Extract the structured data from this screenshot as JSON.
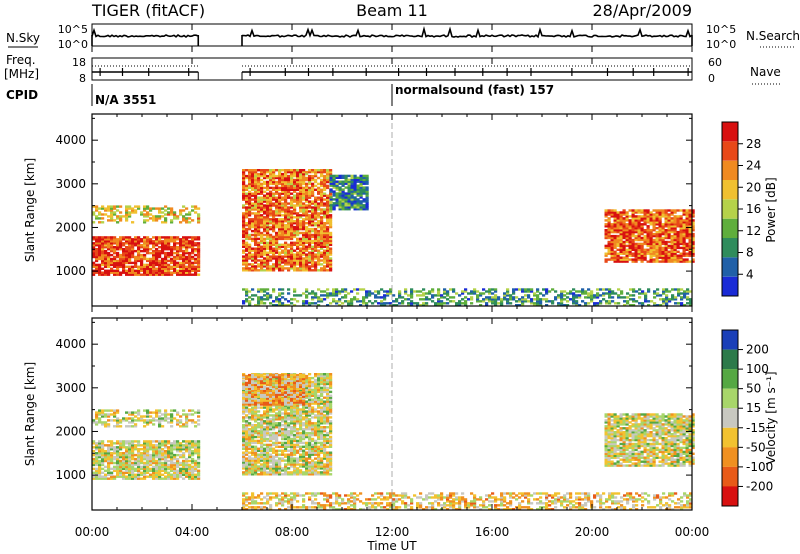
{
  "header": {
    "radar": "TIGER (fitACF)",
    "beam": "Beam 11",
    "date": "28/Apr/2009"
  },
  "noise_panel": {
    "left_label": "N.Sky",
    "right_label": "N.Search",
    "ticks_left": [
      "10^5",
      "10^0"
    ],
    "ticks_right": [
      "10^5",
      "10^0"
    ]
  },
  "freq_panel": {
    "left_label_1": "Freq.",
    "left_label_2": "[MHz]",
    "left_ticks": [
      "18",
      "8"
    ],
    "right_label": "Nave",
    "right_ticks": [
      "60",
      "0"
    ]
  },
  "cpid_panel": {
    "label": "CPID",
    "entries": [
      "N/A 3551",
      "normalsound (fast) 157"
    ]
  },
  "time_axis": {
    "label": "Time UT",
    "ticks": [
      "00:00",
      "04:00",
      "08:00",
      "12:00",
      "16:00",
      "20:00",
      "00:00"
    ]
  },
  "power_panel": {
    "ylabel": "Slant Range [km]",
    "yticks": [
      "1000",
      "2000",
      "3000",
      "4000"
    ],
    "colorbar_label": "Power [dB]",
    "colorbar_ticks": [
      "4",
      "8",
      "12",
      "16",
      "20",
      "24",
      "28"
    ],
    "colors": [
      "#1a2bd6",
      "#2060a8",
      "#2f8c5c",
      "#5fae3c",
      "#b5d24a",
      "#f0c030",
      "#f08a20",
      "#e84818",
      "#d81010"
    ]
  },
  "velocity_panel": {
    "ylabel": "Slant Range [km]",
    "yticks": [
      "1000",
      "2000",
      "3000",
      "4000"
    ],
    "colorbar_label": "Velocity [m s⁻¹]",
    "colorbar_ticks": [
      "200",
      "100",
      "50",
      "15",
      "-15",
      "-50",
      "-100",
      "-200"
    ],
    "colors": [
      "#1a3fb8",
      "#2c7a4a",
      "#55a843",
      "#a8d66a",
      "#c8c8c0",
      "#f2c230",
      "#f09020",
      "#e85a18",
      "#d81010"
    ]
  },
  "chart_data": [
    {
      "type": "heatmap",
      "title": "Power [dB]",
      "xlabel": "Time UT",
      "ylabel": "Slant Range [km]",
      "xlim": [
        "00:00",
        "24:00"
      ],
      "ylim": [
        200,
        4600
      ],
      "zlim": [
        0,
        32
      ],
      "data_gap": [
        "04:15",
        "06:00"
      ],
      "regions": [
        {
          "t": [
            "00:00",
            "04:15"
          ],
          "range_km": [
            900,
            1800
          ],
          "power_db": 28
        },
        {
          "t": [
            "00:00",
            "04:15"
          ],
          "range_km": [
            2100,
            2500
          ],
          "power_db": 18
        },
        {
          "t": [
            "06:00",
            "09:30"
          ],
          "range_km": [
            1000,
            3300
          ],
          "power_db": 24
        },
        {
          "t": [
            "09:30",
            "11:00"
          ],
          "range_km": [
            2400,
            3200
          ],
          "power_db": 8
        },
        {
          "t": [
            "20:30",
            "24:00"
          ],
          "range_km": [
            1200,
            2400
          ],
          "power_db": 26
        },
        {
          "t": [
            "06:00",
            "24:00"
          ],
          "range_km": [
            200,
            600
          ],
          "power_db": 10
        }
      ]
    },
    {
      "type": "heatmap",
      "title": "Velocity [m s⁻¹]",
      "xlabel": "Time UT",
      "ylabel": "Slant Range [km]",
      "xlim": [
        "00:00",
        "24:00"
      ],
      "ylim": [
        200,
        4600
      ],
      "zlim": [
        -250,
        250
      ],
      "data_gap": [
        "04:15",
        "06:00"
      ],
      "regions": [
        {
          "t": [
            "00:00",
            "04:15"
          ],
          "range_km": [
            900,
            1800
          ],
          "velocity_ms": 0
        },
        {
          "t": [
            "00:00",
            "04:15"
          ],
          "range_km": [
            2100,
            2500
          ],
          "velocity_ms": 0
        },
        {
          "t": [
            "06:00",
            "09:30"
          ],
          "range_km": [
            1000,
            3300
          ],
          "velocity_ms": 0
        },
        {
          "t": [
            "06:00",
            "08:30"
          ],
          "range_km": [
            2600,
            3300
          ],
          "velocity_ms": -80
        },
        {
          "t": [
            "20:30",
            "24:00"
          ],
          "range_km": [
            1200,
            2400
          ],
          "velocity_ms": 0
        },
        {
          "t": [
            "06:00",
            "24:00"
          ],
          "range_km": [
            200,
            600
          ],
          "velocity_ms": -40
        }
      ]
    }
  ]
}
